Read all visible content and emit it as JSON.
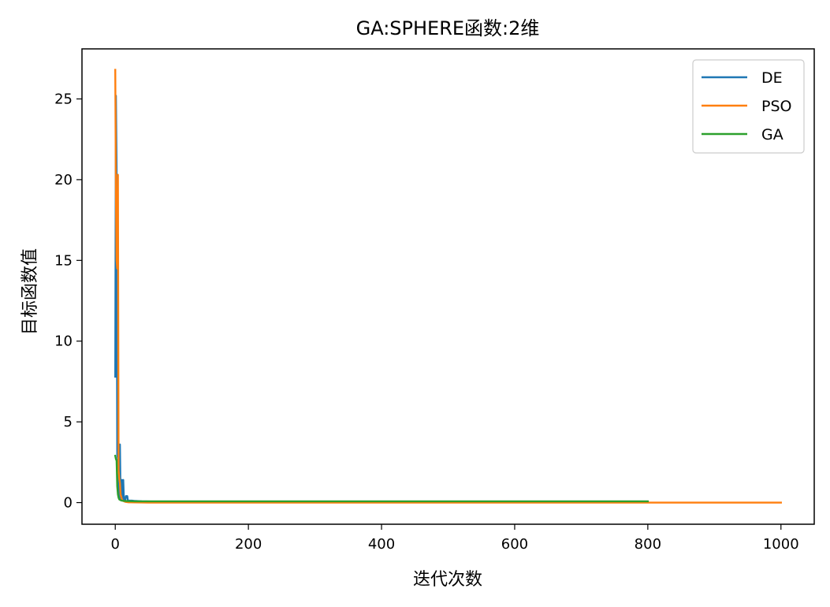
{
  "chart_data": {
    "type": "line",
    "title": "GA:SPHERE函数:2维",
    "xlabel": "迭代次数",
    "ylabel": "目标函数值",
    "xlim": [
      -50,
      1050
    ],
    "ylim": [
      -1.34,
      28.1
    ],
    "xticks": [
      0,
      200,
      400,
      600,
      800,
      1000
    ],
    "yticks": [
      0,
      5,
      10,
      15,
      20,
      25
    ],
    "xtick_labels": [
      "0",
      "200",
      "400",
      "600",
      "800",
      "1000"
    ],
    "ytick_labels": [
      "0",
      "5",
      "10",
      "15",
      "20",
      "25"
    ],
    "grid": false,
    "legend_position": "top-right",
    "series": [
      {
        "name": "DE",
        "color": "#1f77b4",
        "x": [
          0,
          1,
          2,
          3,
          4,
          5,
          6,
          7,
          8,
          9,
          10,
          11,
          12,
          13,
          15,
          16,
          18,
          19,
          22,
          25,
          30,
          40,
          60,
          100,
          200,
          400,
          600,
          800
        ],
        "y": [
          7.8,
          25.2,
          20.6,
          3.0,
          2.7,
          0.4,
          0.3,
          3.6,
          0.3,
          0.2,
          1.4,
          0.2,
          1.4,
          0.15,
          0.15,
          0.4,
          0.4,
          0.12,
          0.12,
          0.12,
          0.1,
          0.08,
          0.06,
          0.05,
          0.05,
          0.05,
          0.05,
          0.05
        ]
      },
      {
        "name": "PSO",
        "color": "#ff7f0e",
        "x": [
          0,
          1,
          2,
          3,
          4,
          5,
          6,
          7,
          8,
          10,
          12,
          15,
          20,
          30,
          50,
          100,
          200,
          400,
          600,
          800,
          1000
        ],
        "y": [
          26.8,
          19.0,
          15.0,
          14.5,
          20.3,
          2.0,
          1.5,
          1.2,
          0.5,
          0.2,
          0.1,
          0.05,
          0.02,
          0.01,
          0.0,
          0.0,
          0.0,
          0.0,
          0.0,
          0.0,
          0.0
        ]
      },
      {
        "name": "GA",
        "color": "#2ca02c",
        "x": [
          0,
          1,
          2,
          3,
          4,
          5,
          6,
          8,
          10,
          15,
          20,
          30,
          50,
          100,
          200,
          400,
          600,
          800
        ],
        "y": [
          2.9,
          2.7,
          2.6,
          1.0,
          0.5,
          0.3,
          0.2,
          0.15,
          0.12,
          0.1,
          0.09,
          0.08,
          0.08,
          0.08,
          0.08,
          0.08,
          0.08,
          0.08
        ]
      }
    ]
  }
}
